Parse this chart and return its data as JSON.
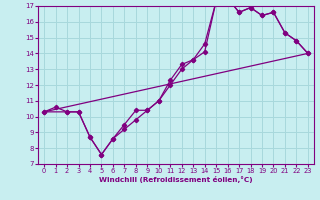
{
  "xlabel": "Windchill (Refroidissement éolien,°C)",
  "bg_color": "#c8eef0",
  "line_color": "#800080",
  "grid_color": "#a8d8dc",
  "xlim": [
    -0.5,
    23.5
  ],
  "ylim": [
    7,
    17
  ],
  "xticks": [
    0,
    1,
    2,
    3,
    4,
    5,
    6,
    7,
    8,
    9,
    10,
    11,
    12,
    13,
    14,
    15,
    16,
    17,
    18,
    19,
    20,
    21,
    22,
    23
  ],
  "yticks": [
    7,
    8,
    9,
    10,
    11,
    12,
    13,
    14,
    15,
    16,
    17
  ],
  "curve1_x": [
    0,
    1,
    2,
    3,
    4,
    5,
    6,
    7,
    8,
    9,
    10,
    11,
    12,
    13,
    14,
    15,
    16,
    17,
    18,
    19,
    20,
    21,
    22,
    23
  ],
  "curve1_y": [
    10.3,
    10.6,
    10.3,
    10.3,
    8.7,
    7.6,
    8.6,
    9.5,
    10.4,
    10.4,
    11.0,
    12.0,
    13.0,
    13.6,
    14.1,
    17.3,
    17.5,
    16.6,
    16.9,
    16.4,
    16.6,
    15.3,
    14.8,
    14.0
  ],
  "curve2_x": [
    0,
    2,
    3,
    4,
    5,
    6,
    7,
    8,
    9,
    10,
    11,
    12,
    13,
    14,
    15,
    16,
    17,
    18,
    19,
    20,
    21,
    22,
    23
  ],
  "curve2_y": [
    10.3,
    10.3,
    10.3,
    8.7,
    7.6,
    8.6,
    9.2,
    9.8,
    10.4,
    11.0,
    12.3,
    13.3,
    13.6,
    14.6,
    17.3,
    17.5,
    16.6,
    16.9,
    16.4,
    16.6,
    15.3,
    14.8,
    14.0
  ],
  "curve3_x": [
    0,
    23
  ],
  "curve3_y": [
    10.3,
    14.0
  ]
}
